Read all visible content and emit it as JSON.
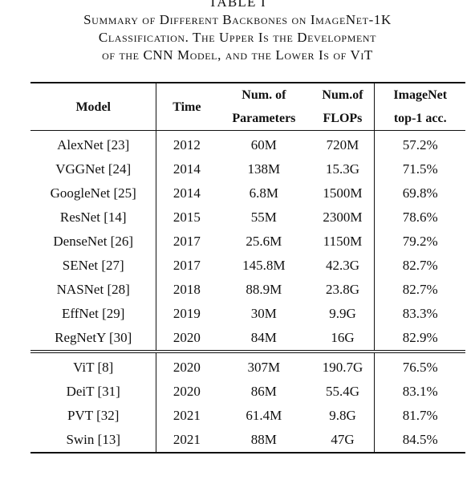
{
  "caption": {
    "label": "TABLE I",
    "lines": [
      "Summary of Different Backbones on ImageNet-1K",
      "Classification. The Upper Is the Development",
      "of the CNN Model, and the Lower Is of ViT"
    ]
  },
  "table": {
    "headers": {
      "model": "Model",
      "time": "Time",
      "params_line1": "Num. of",
      "params_line2": "Parameters",
      "flops_line1": "Num.of",
      "flops_line2": "FLOPs",
      "acc_line1": "ImageNet",
      "acc_line2": "top-1 acc."
    },
    "cnn_rows": [
      {
        "model": "AlexNet [23]",
        "time": "2012",
        "params": "60M",
        "flops": "720M",
        "acc": "57.2%"
      },
      {
        "model": "VGGNet [24]",
        "time": "2014",
        "params": "138M",
        "flops": "15.3G",
        "acc": "71.5%"
      },
      {
        "model": "GoogleNet [25]",
        "time": "2014",
        "params": "6.8M",
        "flops": "1500M",
        "acc": "69.8%"
      },
      {
        "model": "ResNet [14]",
        "time": "2015",
        "params": "55M",
        "flops": "2300M",
        "acc": "78.6%"
      },
      {
        "model": "DenseNet [26]",
        "time": "2017",
        "params": "25.6M",
        "flops": "1150M",
        "acc": "79.2%"
      },
      {
        "model": "SENet [27]",
        "time": "2017",
        "params": "145.8M",
        "flops": "42.3G",
        "acc": "82.7%"
      },
      {
        "model": "NASNet [28]",
        "time": "2018",
        "params": "88.9M",
        "flops": "23.8G",
        "acc": "82.7%"
      },
      {
        "model": "EffNet [29]",
        "time": "2019",
        "params": "30M",
        "flops": "9.9G",
        "acc": "83.3%"
      },
      {
        "model": "RegNetY [30]",
        "time": "2020",
        "params": "84M",
        "flops": "16G",
        "acc": "82.9%"
      }
    ],
    "vit_rows": [
      {
        "model": "ViT [8]",
        "time": "2020",
        "params": "307M",
        "flops": "190.7G",
        "acc": "76.5%"
      },
      {
        "model": "DeiT [31]",
        "time": "2020",
        "params": "86M",
        "flops": "55.4G",
        "acc": "83.1%"
      },
      {
        "model": "PVT [32]",
        "time": "2021",
        "params": "61.4M",
        "flops": "9.8G",
        "acc": "81.7%"
      },
      {
        "model": "Swin [13]",
        "time": "2021",
        "params": "88M",
        "flops": "47G",
        "acc": "84.5%"
      }
    ]
  }
}
